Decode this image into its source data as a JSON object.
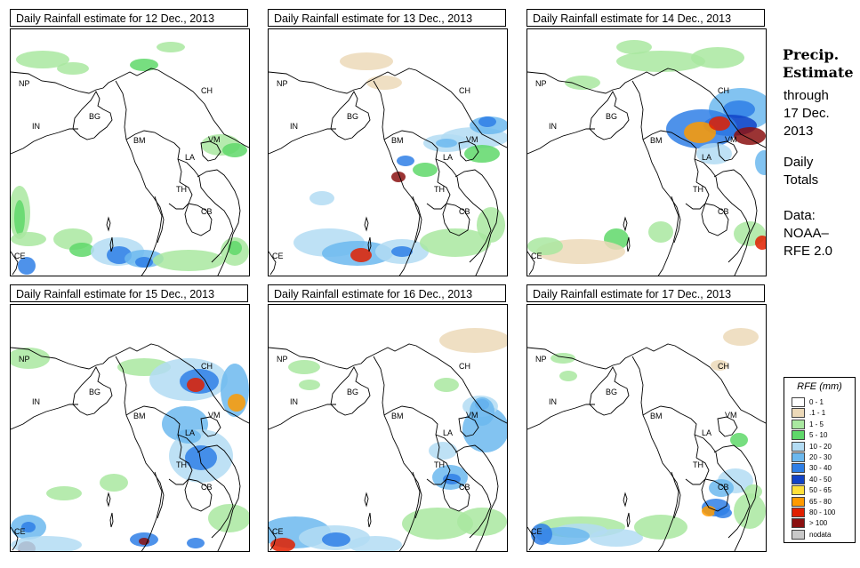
{
  "panels": [
    {
      "title": "Daily Rainfall estimate for  12 Dec., 2013"
    },
    {
      "title": "Daily Rainfall estimate for  13 Dec., 2013"
    },
    {
      "title": "Daily Rainfall estimate for  14 Dec., 2013"
    },
    {
      "title": "Daily Rainfall estimate for  15 Dec., 2013"
    },
    {
      "title": "Daily Rainfall estimate for  16 Dec., 2013"
    },
    {
      "title": "Daily Rainfall estimate for  17 Dec., 2013"
    }
  ],
  "country_labels": {
    "np": "NP",
    "in": "IN",
    "bg": "BG",
    "bm": "BM",
    "ch": "CH",
    "vm": "VM",
    "la": "LA",
    "th": "TH",
    "cb": "CB",
    "ce": "CE"
  },
  "sidebar": {
    "heading_line1": "Precip.",
    "heading_line2": "Estimate",
    "through": "through",
    "date_line1": "17 Dec.",
    "date_line2": "2013",
    "daily": "Daily",
    "totals": "Totals",
    "data_label": "Data:",
    "data_source": "NOAA–",
    "data_version": "RFE 2.0"
  },
  "legend": {
    "title": "RFE (mm)",
    "items": [
      {
        "label": "0 - 1",
        "color": "#ffffff"
      },
      {
        "label": ".1 - 1",
        "color": "#ecd9b8"
      },
      {
        "label": "1 - 5",
        "color": "#a9e8a0"
      },
      {
        "label": "5 - 10",
        "color": "#5fd86a"
      },
      {
        "label": "10 - 20",
        "color": "#b3dcf3"
      },
      {
        "label": "20 - 30",
        "color": "#6cb8ee"
      },
      {
        "label": "30 - 40",
        "color": "#2f7fe6"
      },
      {
        "label": "40 - 50",
        "color": "#1243c7"
      },
      {
        "label": "50 - 65",
        "color": "#ffe03a"
      },
      {
        "label": "65 - 80",
        "color": "#ff9a00"
      },
      {
        "label": "80 - 100",
        "color": "#e02000"
      },
      {
        "label": "> 100",
        "color": "#8a1010"
      },
      {
        "label": "nodata",
        "color": "#c8c8c8"
      }
    ]
  }
}
